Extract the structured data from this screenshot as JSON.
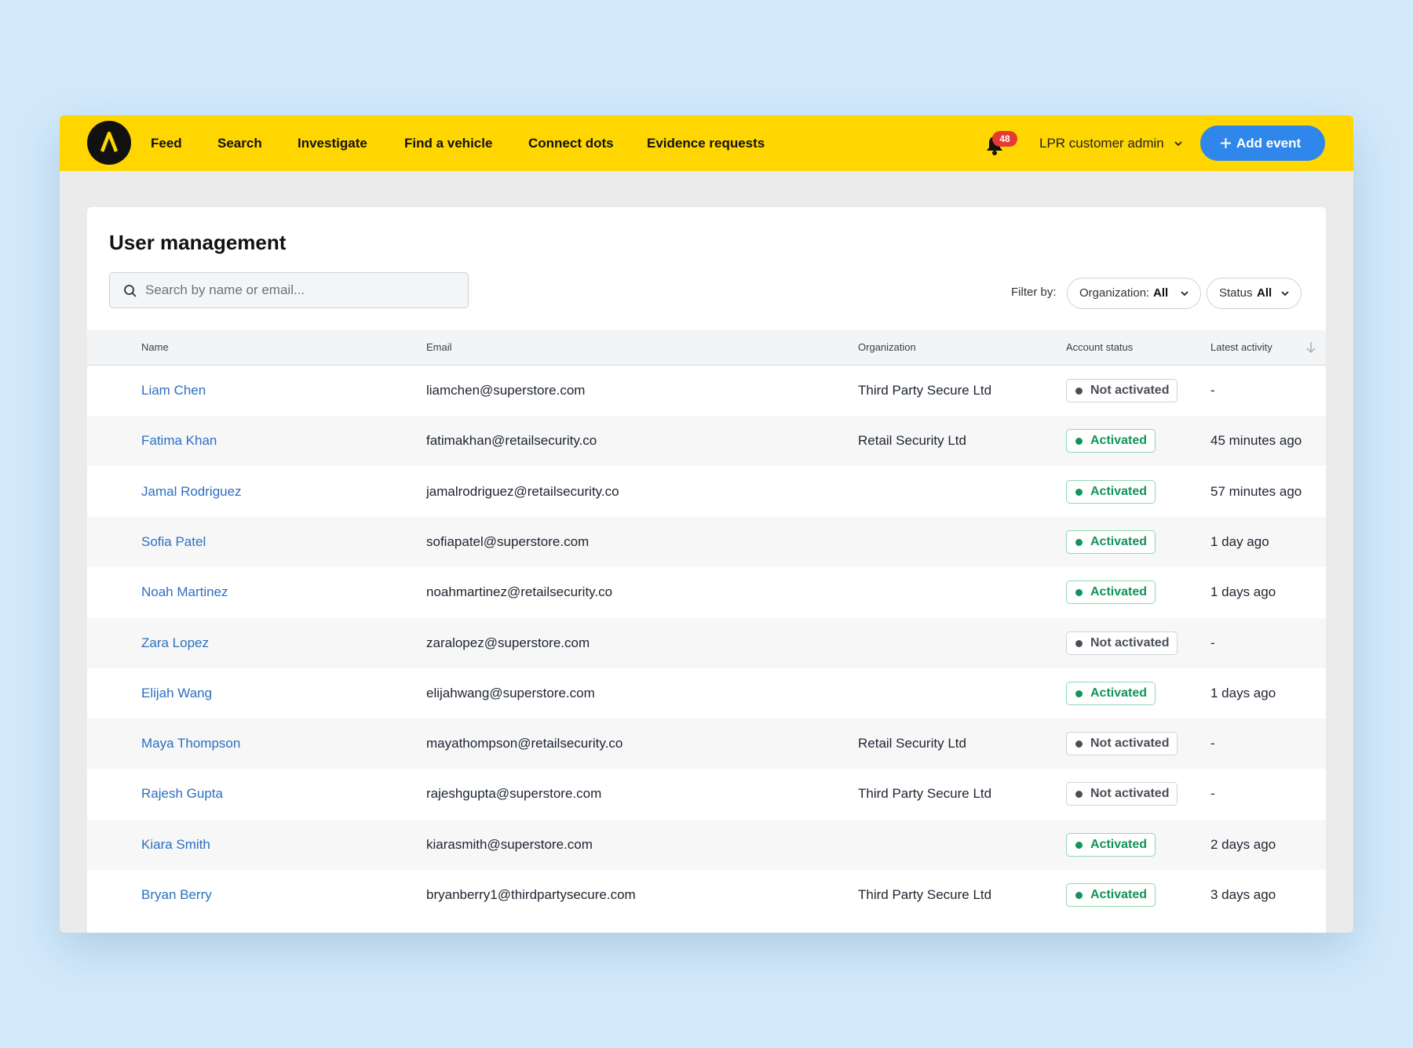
{
  "nav": {
    "items": [
      "Feed",
      "Search",
      "Investigate",
      "Find a vehicle",
      "Connect dots",
      "Evidence requests"
    ],
    "notification_count": 48,
    "user_menu": "LPR customer admin",
    "action_button": "Add event"
  },
  "page": {
    "title": "User management",
    "search_placeholder": "Search by name or email...",
    "filter_label": "Filter by:",
    "filters": [
      {
        "label": "Organization:",
        "value": "All"
      },
      {
        "label": "Status",
        "value": "All"
      }
    ]
  },
  "table": {
    "columns": [
      "Name",
      "Email",
      "Organization",
      "Account status",
      "Latest activity"
    ],
    "rows": [
      [
        "Liam Chen",
        "liamchen@superstore.com",
        "Third Party Secure Ltd",
        {
          "text": "Not activated",
          "color": "#4a4f57"
        },
        "-"
      ],
      [
        "Fatima Khan",
        "fatimakhan@retailsecurity.co",
        "Retail Security Ltd",
        {
          "text": "Activated",
          "color": "#14935a"
        },
        "45 minutes ago"
      ],
      [
        "Jamal Rodriguez",
        "jamalrodriguez@retailsecurity.co",
        null,
        {
          "text": "Activated",
          "color": "#14935a"
        },
        "57 minutes ago"
      ],
      [
        "Sofia Patel",
        "sofiapatel@superstore.com",
        null,
        {
          "text": "Activated",
          "color": "#14935a"
        },
        "1 day ago"
      ],
      [
        "Noah Martinez",
        "noahmartinez@retailsecurity.co",
        null,
        {
          "text": "Activated",
          "color": "#14935a"
        },
        "1 days ago"
      ],
      [
        "Zara Lopez",
        "zaralopez@superstore.com",
        null,
        {
          "text": "Not activated",
          "color": "#4a4f57"
        },
        "-"
      ],
      [
        "Elijah Wang",
        "elijahwang@superstore.com",
        null,
        {
          "text": "Activated",
          "color": "#14935a"
        },
        "1 days ago"
      ],
      [
        "Maya Thompson",
        "mayathompson@retailsecurity.co",
        "Retail Security Ltd",
        {
          "text": "Not activated",
          "color": "#4a4f57"
        },
        "-"
      ],
      [
        "Rajesh Gupta",
        "rajeshgupta@superstore.com",
        "Third Party Secure Ltd",
        {
          "text": "Not activated",
          "color": "#4a4f57"
        },
        "-"
      ],
      [
        "Kiara Smith",
        "kiarasmith@superstore.com",
        null,
        {
          "text": "Activated",
          "color": "#14935a"
        },
        "2 days ago"
      ],
      [
        "Bryan Berry",
        "bryanberry1@thirdpartysecure.com",
        "Third Party Secure Ltd",
        {
          "text": "Activated",
          "color": "#14935a"
        },
        "3 days ago"
      ]
    ]
  }
}
